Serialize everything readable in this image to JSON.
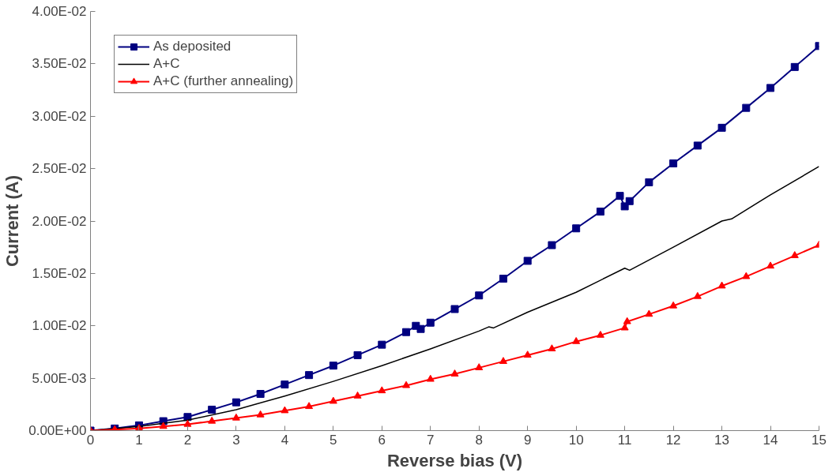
{
  "chart_data": {
    "type": "line",
    "xlabel": "Reverse bias (V)",
    "ylabel": "Current (A)",
    "xlim": [
      0,
      15
    ],
    "xticks": [
      0,
      1,
      2,
      3,
      4,
      5,
      6,
      7,
      8,
      9,
      10,
      11,
      12,
      13,
      14,
      15
    ],
    "ylim": [
      0,
      0.04
    ],
    "yticks": [
      {
        "value": 0,
        "label": "0.00E+00"
      },
      {
        "value": 0.005,
        "label": "5.00E-03"
      },
      {
        "value": 0.01,
        "label": "1.00E-02"
      },
      {
        "value": 0.015,
        "label": "1.50E-02"
      },
      {
        "value": 0.02,
        "label": "2.00E-02"
      },
      {
        "value": 0.025,
        "label": "2.50E-02"
      },
      {
        "value": 0.03,
        "label": "3.00E-02"
      },
      {
        "value": 0.035,
        "label": "3.50E-02"
      },
      {
        "value": 0.04,
        "label": "4.00E-02"
      }
    ],
    "grid": false,
    "legend": "top left",
    "series": [
      {
        "name": "As deposited",
        "color": "#000080",
        "marker": "square",
        "x": [
          0,
          0.5,
          1,
          1.5,
          2,
          2.5,
          3,
          3.5,
          4,
          4.5,
          5,
          5.5,
          6,
          6.5,
          6.7,
          6.8,
          7,
          7.5,
          8,
          8.5,
          9,
          9.5,
          10,
          10.5,
          10.9,
          11,
          11.1,
          11.5,
          12,
          12.5,
          13,
          13.5,
          14,
          14.5,
          15
        ],
        "values": [
          0,
          0.0002,
          0.0005,
          0.0009,
          0.0013,
          0.002,
          0.0027,
          0.0035,
          0.0044,
          0.0053,
          0.0062,
          0.0072,
          0.0082,
          0.0094,
          0.01,
          0.0097,
          0.0103,
          0.0116,
          0.0129,
          0.0145,
          0.0162,
          0.0177,
          0.0193,
          0.0209,
          0.0224,
          0.0214,
          0.0219,
          0.0237,
          0.0255,
          0.0272,
          0.0289,
          0.0308,
          0.0327,
          0.0347,
          0.0367
        ]
      },
      {
        "name": "A+C",
        "color": "#000000",
        "marker": "none",
        "x": [
          0,
          1,
          2,
          3,
          4,
          5,
          6,
          7,
          8,
          8.2,
          8.3,
          9,
          10,
          11,
          11.1,
          12,
          13,
          13.2,
          14,
          15
        ],
        "values": [
          0,
          0.0004,
          0.001,
          0.002,
          0.0033,
          0.0047,
          0.0062,
          0.0078,
          0.0095,
          0.0099,
          0.0098,
          0.0113,
          0.0132,
          0.0155,
          0.0153,
          0.0175,
          0.02,
          0.0202,
          0.0225,
          0.0252
        ]
      },
      {
        "name": "A+C (further annealing)",
        "color": "#ff0000",
        "marker": "triangle",
        "x": [
          0,
          0.5,
          1,
          1.5,
          2,
          2.5,
          3,
          3.5,
          4,
          4.5,
          5,
          5.5,
          6,
          6.5,
          7,
          7.5,
          8,
          8.5,
          9,
          9.5,
          10,
          10.5,
          11,
          11.05,
          11.5,
          12,
          12.5,
          13,
          13.5,
          14,
          14.5,
          15
        ],
        "values": [
          0,
          0.0001,
          0.0002,
          0.0004,
          0.0006,
          0.0009,
          0.0012,
          0.0015,
          0.0019,
          0.0023,
          0.0028,
          0.0033,
          0.0038,
          0.0043,
          0.0049,
          0.0054,
          0.006,
          0.0066,
          0.0072,
          0.0078,
          0.0085,
          0.0091,
          0.0098,
          0.0104,
          0.0111,
          0.0119,
          0.0128,
          0.0138,
          0.0147,
          0.0157,
          0.0167,
          0.0177
        ]
      }
    ]
  }
}
